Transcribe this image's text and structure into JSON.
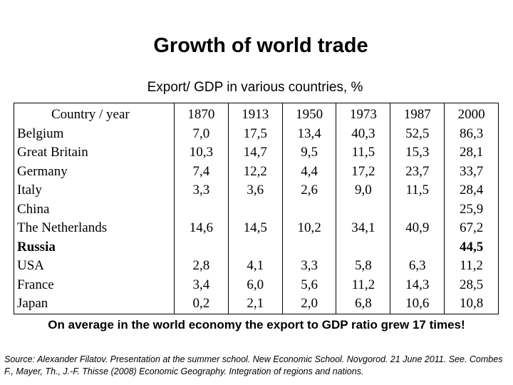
{
  "title": "Growth of world trade",
  "subtitle": "Export/ GDP in various countries, %",
  "table": {
    "header": [
      "Country / year",
      "1870",
      "1913",
      "1950",
      "1973",
      "1987",
      "2000"
    ],
    "countries": [
      "Belgium",
      "Great Britain",
      "Germany",
      "Italy",
      "China",
      "The Netherlands",
      "Russia",
      "USA",
      "France",
      "Japan"
    ],
    "bold_countries": [
      "Russia"
    ],
    "columns": [
      {
        "year": "1870",
        "values": [
          "7,0",
          "10,3",
          "7,4",
          "3,3",
          "",
          "14,6",
          "",
          "2,8",
          "3,4",
          "0,2"
        ]
      },
      {
        "year": "1913",
        "values": [
          "17,5",
          "14,7",
          "12,2",
          "3,6",
          "",
          "14,5",
          "",
          "4,1",
          "6,0",
          "2,1"
        ]
      },
      {
        "year": "1950",
        "values": [
          "13,4",
          "9,5",
          "4,4",
          "2,6",
          "",
          "10,2",
          "",
          "3,3",
          "5,6",
          "2,0"
        ]
      },
      {
        "year": "1973",
        "values": [
          "40,3",
          "11,5",
          "17,2",
          "9,0",
          "",
          "34,1",
          "",
          "5,8",
          "11,2",
          "6,8"
        ]
      },
      {
        "year": "1987",
        "values": [
          "52,5",
          "15,3",
          "23,7",
          "11,5",
          "",
          "40,9",
          "",
          "6,3",
          "14,3",
          "10,6"
        ]
      },
      {
        "year": "2000",
        "values": [
          "86,3",
          "28,1",
          "33,7",
          "28,4",
          "25,9",
          "67,2",
          "44,5",
          "11,2",
          "28,5",
          "10,8"
        ]
      }
    ]
  },
  "note": "On average in the world economy the export to GDP ratio grew 17 times!",
  "source": "Source: Alexander Filatov. Presentation at the summer school. New Economic School. Novgorod. 21 June 2011. See. Combes F., Mayer, Th., J.-F. Thisse (2008) Economic Geography. Integration of regions and nations."
}
